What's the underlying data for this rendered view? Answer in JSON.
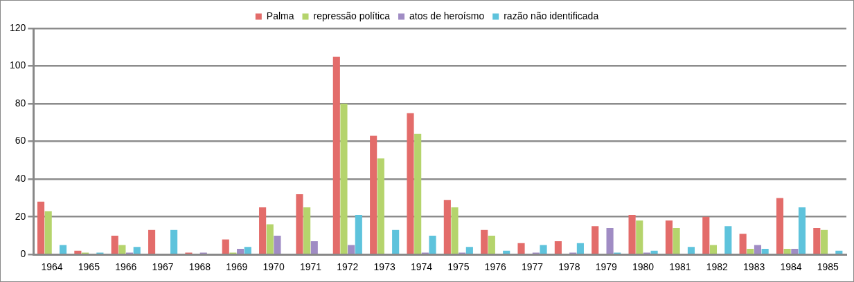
{
  "chart_data": {
    "type": "bar",
    "categories": [
      "1964",
      "1965",
      "1966",
      "1967",
      "1968",
      "1969",
      "1970",
      "1971",
      "1972",
      "1973",
      "1974",
      "1975",
      "1976",
      "1977",
      "1978",
      "1979",
      "1980",
      "1981",
      "1982",
      "1983",
      "1984",
      "1985"
    ],
    "series": [
      {
        "name": "Palma",
        "color": "#e36c6a",
        "values": [
          28,
          2,
          10,
          13,
          1,
          8,
          25,
          32,
          105,
          63,
          75,
          29,
          13,
          6,
          7,
          15,
          21,
          18,
          20,
          11,
          30,
          14
        ]
      },
      {
        "name": "repressão política",
        "color": "#b5d46c",
        "values": [
          23,
          1,
          5,
          0,
          0,
          1,
          16,
          25,
          80,
          51,
          64,
          25,
          10,
          0,
          0,
          0,
          18,
          14,
          5,
          3,
          3,
          13
        ]
      },
      {
        "name": "atos de heroísmo",
        "color": "#a08cc4",
        "values": [
          0,
          0,
          1,
          0,
          1,
          3,
          10,
          7,
          5,
          0,
          1,
          1,
          0,
          1,
          1,
          14,
          1,
          0,
          0,
          5,
          3,
          0
        ]
      },
      {
        "name": "razão não identificada",
        "color": "#5ec3dc",
        "values": [
          5,
          1,
          4,
          13,
          0,
          4,
          0,
          0,
          21,
          13,
          10,
          4,
          2,
          5,
          6,
          1,
          2,
          4,
          15,
          3,
          25,
          2
        ]
      }
    ],
    "ylim": [
      0,
      120
    ],
    "yticks": [
      0,
      20,
      40,
      60,
      80,
      100,
      120
    ],
    "grid": "y",
    "legend": "top"
  }
}
